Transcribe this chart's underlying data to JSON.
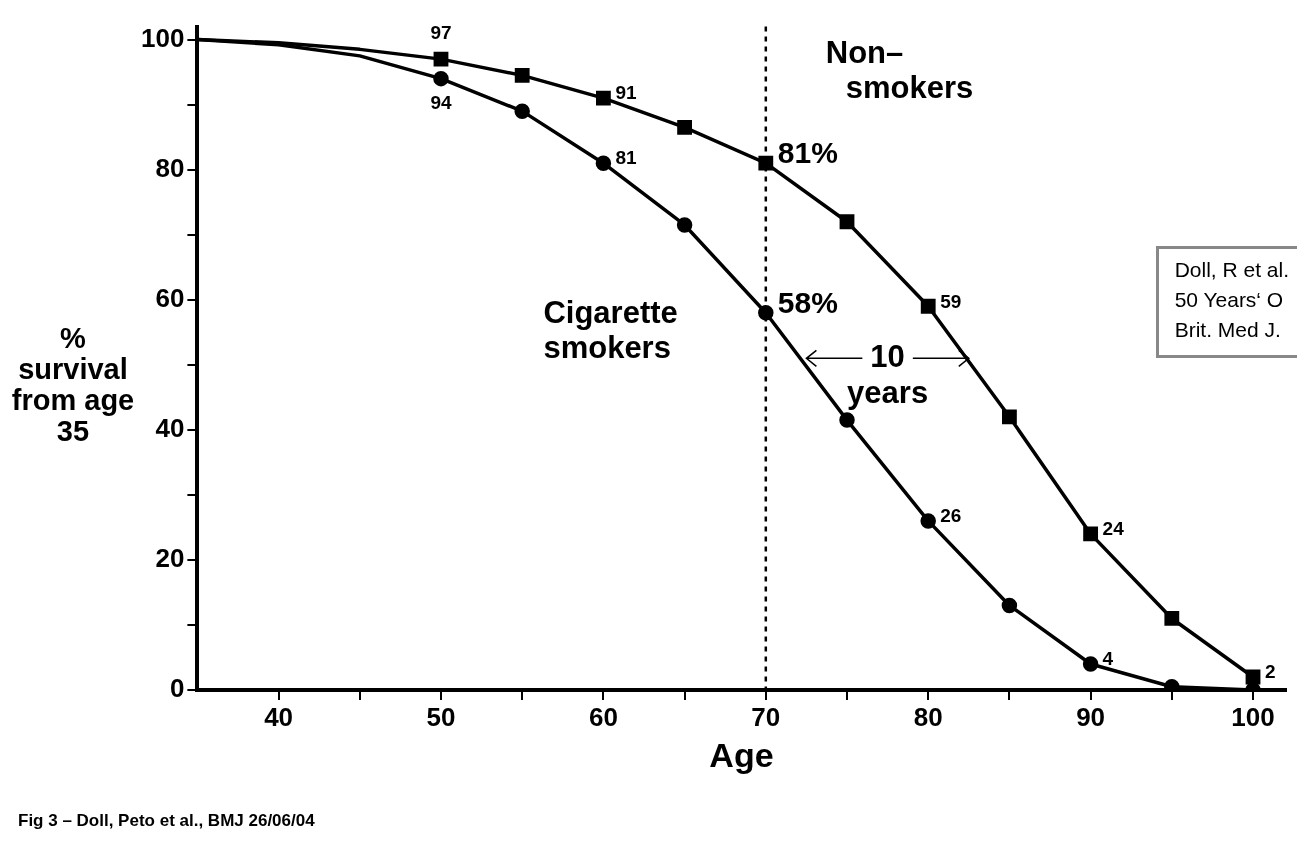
{
  "chart_data": {
    "type": "line",
    "xlabel": "Age",
    "ylabel": "% survival from age 35",
    "x": [
      35,
      40,
      45,
      50,
      55,
      60,
      65,
      70,
      75,
      80,
      85,
      90,
      95,
      100
    ],
    "series": [
      {
        "name": "Cigarette smokers",
        "color": "#000000",
        "marker": "circle",
        "values": [
          100,
          99.2,
          97.5,
          94,
          89,
          81,
          71.5,
          58,
          41.5,
          26,
          13,
          4,
          0.5,
          0
        ],
        "value_labels": [
          null,
          null,
          null,
          "94",
          null,
          "81",
          null,
          "58%",
          null,
          "26",
          null,
          "4",
          null,
          null
        ]
      },
      {
        "name": "Non–smokers",
        "color": "#000000",
        "marker": "square",
        "values": [
          100,
          99.5,
          98.5,
          97,
          94.5,
          91,
          86.5,
          81,
          72,
          59,
          42,
          24,
          11,
          2
        ],
        "value_labels": [
          null,
          null,
          null,
          "97",
          null,
          "91",
          null,
          "81%",
          null,
          "59",
          null,
          "24",
          null,
          "2"
        ]
      }
    ],
    "xlim": [
      35,
      102
    ],
    "xticks": [
      40,
      {
        "value": 45,
        "label": null
      },
      50,
      {
        "value": 55,
        "label": null
      },
      60,
      {
        "value": 65,
        "label": null
      },
      70,
      {
        "value": 75,
        "label": null
      },
      80,
      {
        "value": 85,
        "label": null
      },
      90,
      {
        "value": 95,
        "label": null
      },
      100
    ],
    "ylim": [
      0,
      102
    ],
    "yticks": [
      0,
      {
        "value": 10,
        "label": null
      },
      20,
      {
        "value": 30,
        "label": null
      },
      40,
      {
        "value": 50,
        "label": null
      },
      60,
      {
        "value": 70,
        "label": null
      },
      80,
      {
        "value": 90,
        "label": null
      },
      100
    ],
    "ref_lines": [
      {
        "axis": "x",
        "value": 70,
        "line_style": "dashed",
        "color": "#000000"
      }
    ],
    "annotations": [
      {
        "text": "10 years",
        "x": 82.5,
        "y": 51
      },
      "Doll, R et al.\n50 Years‘ O\nBrit. Med J.",
      "Fig 3 – Doll, Peto et al., BMJ 26/06/04"
    ],
    "grid": false,
    "legend": false
  }
}
